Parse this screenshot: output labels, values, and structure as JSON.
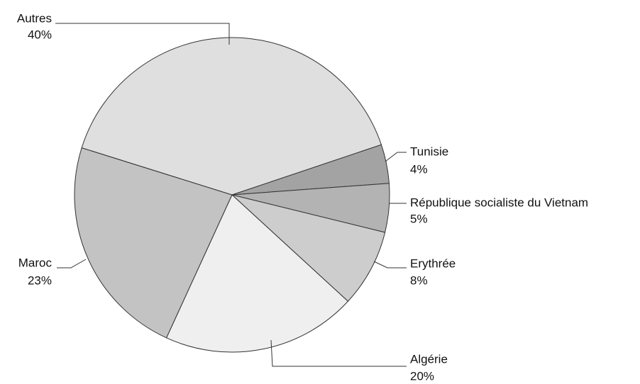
{
  "chart_data": {
    "type": "pie",
    "categories": [
      "Tunisie",
      "République socialiste du Vietnam",
      "Erythrée",
      "Algérie",
      "Maroc",
      "Autres"
    ],
    "values": [
      4,
      5,
      8,
      20,
      23,
      40
    ],
    "value_labels": [
      "4%",
      "5%",
      "8%",
      "20%",
      "23%",
      "40%"
    ],
    "colors": [
      "#a3a3a3",
      "#b3b3b3",
      "#cdcdcd",
      "#efefef",
      "#c3c3c3",
      "#dfdfdf"
    ]
  }
}
